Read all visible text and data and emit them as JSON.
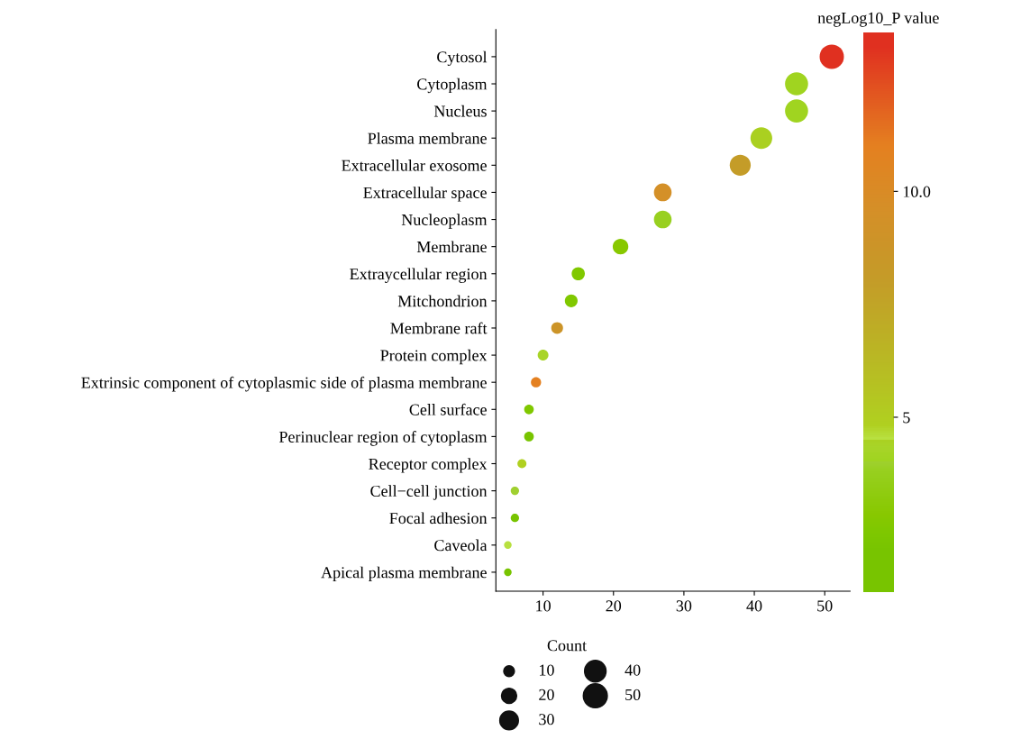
{
  "chart_data": {
    "type": "bubble",
    "orientation": "horizontal",
    "categories": [
      "Cytosol",
      "Cytoplasm",
      "Nucleus",
      "Plasma membrane",
      "Extracellular exosome",
      "Extracellular space",
      "Nucleoplasm",
      "Membrane",
      "Extraycellular region",
      "Mitchondrion",
      "Membrane raft",
      "Protein complex",
      "Extrinsic component of cytoplasmic side of plasma membrane",
      "Cell surface",
      "Perinuclear region of cytoplasm",
      "Receptor complex",
      "Cell−cell junction",
      "Focal adhesion",
      "Caveola",
      "Apical plasma membrane"
    ],
    "values": [
      51,
      46,
      46,
      41,
      38,
      27,
      27,
      21,
      15,
      14,
      12,
      10,
      9,
      8,
      8,
      7,
      6,
      6,
      5,
      5
    ],
    "sizes": [
      51,
      46,
      46,
      41,
      38,
      27,
      27,
      21,
      15,
      14,
      12,
      10,
      9,
      8,
      8,
      7,
      6,
      6,
      5,
      5
    ],
    "cvalues": [
      13.2,
      4.0,
      4.0,
      4.5,
      8.0,
      9.5,
      3.8,
      2.8,
      2.5,
      2.5,
      8.8,
      4.3,
      11.0,
      2.5,
      2.0,
      4.8,
      4.0,
      2.0,
      4.5,
      2.0
    ],
    "colors": [
      "#e03020",
      "#a0d420",
      "#a0d420",
      "#aad020",
      "#c49c28",
      "#d49028",
      "#98d020",
      "#88c800",
      "#80c800",
      "#80c800",
      "#cc9428",
      "#a8d428",
      "#e48020",
      "#80c800",
      "#78c400",
      "#b0d020",
      "#a0d030",
      "#78c400",
      "#b8e040",
      "#78c400"
    ],
    "size_legend": [
      10,
      20,
      30,
      40,
      50
    ],
    "legend_title": "Count",
    "clabel": "negLog10_P value",
    "clim": [
      1.1,
      13.5
    ],
    "cticks": [
      {
        "value": 5,
        "label": "5"
      },
      {
        "value": 10,
        "label": "10.0"
      }
    ],
    "xlim": [
      3.3,
      53.6
    ],
    "xticks": [
      10,
      20,
      30,
      40,
      50
    ],
    "grid": false
  }
}
